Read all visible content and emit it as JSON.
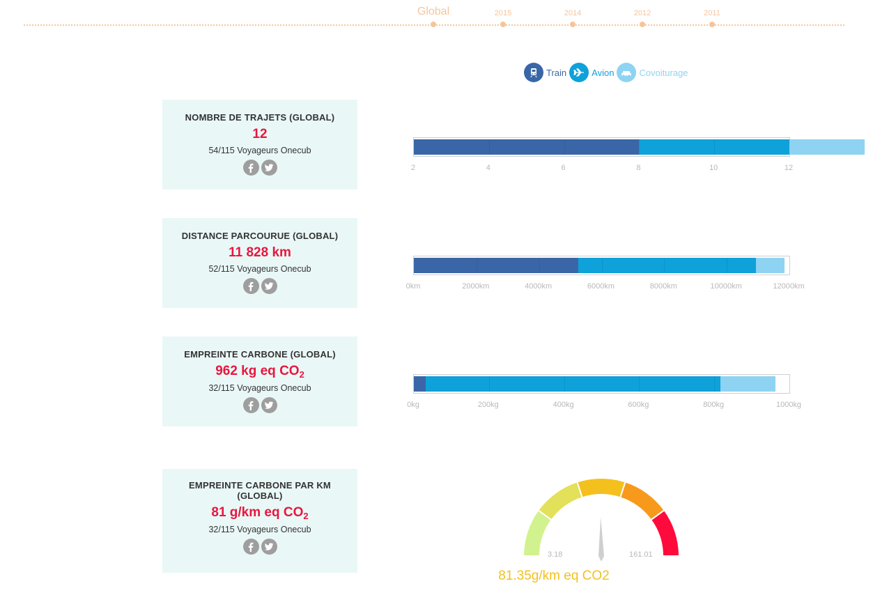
{
  "timeline": {
    "items": [
      {
        "label": "Global",
        "active": true
      },
      {
        "label": "2015",
        "active": false
      },
      {
        "label": "2014",
        "active": false
      },
      {
        "label": "2012",
        "active": false
      },
      {
        "label": "2011",
        "active": false
      }
    ],
    "color": "#f5c59a"
  },
  "legend": {
    "items": [
      {
        "label": "Train",
        "icon": "train-icon",
        "color": "#3a66a8"
      },
      {
        "label": "Avion",
        "icon": "plane-icon",
        "color": "#0fa1d9"
      },
      {
        "label": "Covoiturage",
        "icon": "car-icon",
        "color": "#8ed3f2"
      }
    ]
  },
  "cards": [
    {
      "title": "NOMBRE DE TRAJETS (GLOBAL)",
      "value": "12",
      "value_sub": "",
      "subtitle": "54/115 Voyageurs Onecub"
    },
    {
      "title": "DISTANCE PARCOURUE (GLOBAL)",
      "value": "11 828 km",
      "value_sub": "",
      "subtitle": "52/115 Voyageurs Onecub"
    },
    {
      "title": "EMPREINTE CARBONE (GLOBAL)",
      "value": "962 kg eq CO",
      "value_sub": "2",
      "subtitle": "32/115 Voyageurs Onecub"
    },
    {
      "title": "EMPREINTE CARBONE PAR KM",
      "title_line2": "(GLOBAL)",
      "value": "81 g/km eq CO",
      "value_sub": "2",
      "subtitle": "32/115 Voyageurs Onecub"
    }
  ],
  "share": {
    "facebook_icon": "facebook-icon",
    "twitter_icon": "twitter-icon"
  },
  "colors": {
    "train": "#3a66a8",
    "avion": "#0fa1d9",
    "covoiturage": "#8ed3f2",
    "card_bg": "#eaf7f7",
    "value_red": "#e8163e",
    "gauge_reading": "#f4c01e"
  },
  "chart_data": [
    {
      "type": "bar",
      "orientation": "horizontal-stacked",
      "ticks": [
        "2",
        "4",
        "6",
        "8",
        "10",
        "12"
      ],
      "xlim": [
        2,
        12
      ],
      "series": [
        {
          "name": "Train",
          "value": 6
        },
        {
          "name": "Avion",
          "value": 4
        },
        {
          "name": "Covoiturage",
          "value": 2
        }
      ]
    },
    {
      "type": "bar",
      "orientation": "horizontal-stacked",
      "ticks": [
        "0km",
        "2000km",
        "4000km",
        "6000km",
        "8000km",
        "10000km",
        "12000km"
      ],
      "xlim": [
        0,
        12000
      ],
      "series": [
        {
          "name": "Train",
          "value": 5250
        },
        {
          "name": "Avion",
          "value": 5690
        },
        {
          "name": "Covoiturage",
          "value": 900
        }
      ]
    },
    {
      "type": "bar",
      "orientation": "horizontal-stacked",
      "ticks": [
        "0kg",
        "200kg",
        "400kg",
        "600kg",
        "800kg",
        "1000kg"
      ],
      "xlim": [
        0,
        1000
      ],
      "series": [
        {
          "name": "Train",
          "value": 31
        },
        {
          "name": "Avion",
          "value": 786
        },
        {
          "name": "Covoiturage",
          "value": 145
        }
      ]
    },
    {
      "type": "gauge",
      "min": 3.18,
      "max": 161.01,
      "min_label": "3.18",
      "max_label": "161.01",
      "value": 81.35,
      "reading": "81.35g/km eq CO2",
      "bands": [
        "#d2f28f",
        "#e3e05a",
        "#f4c01e",
        "#f79a1c",
        "#ff0a3c"
      ]
    }
  ]
}
